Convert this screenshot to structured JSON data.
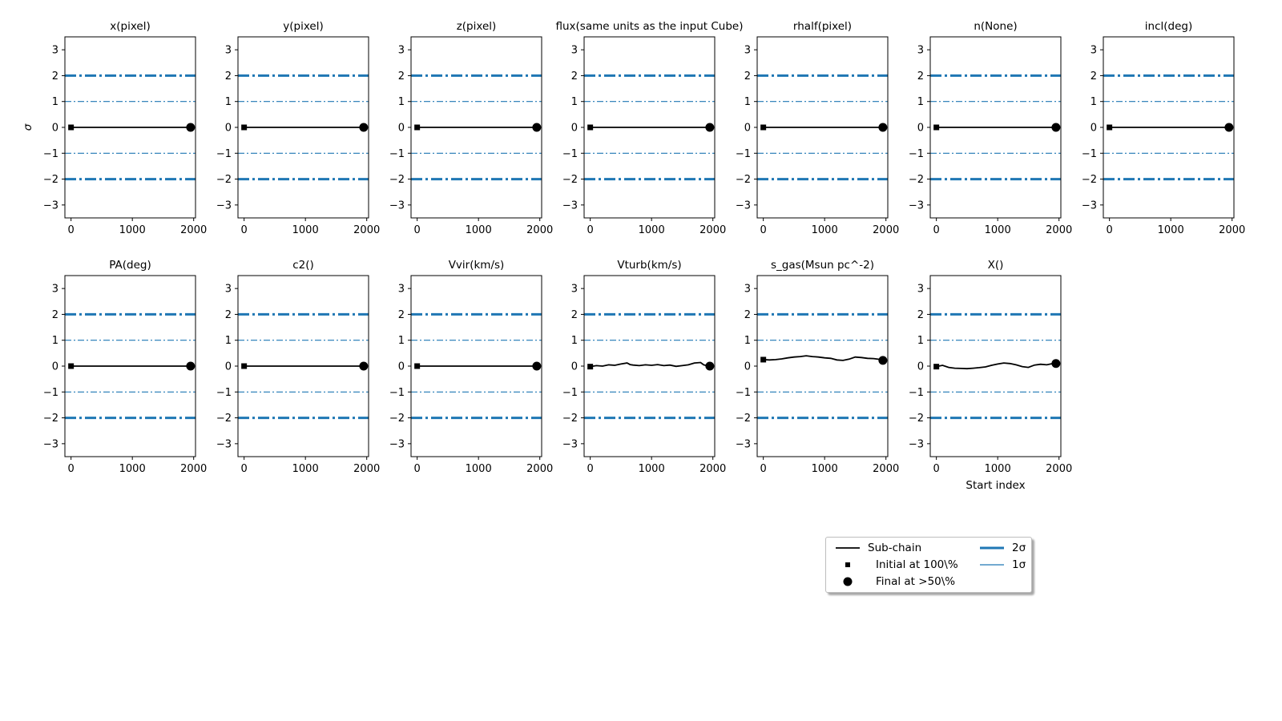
{
  "chart_data": {
    "type": "line",
    "ylabel": "σ",
    "xlabel": "Start index",
    "xlim": [
      -100,
      2030
    ],
    "ylim": [
      -3.5,
      3.5
    ],
    "xticks": [
      0,
      1000,
      2000
    ],
    "yticks": [
      -3,
      -2,
      -1,
      0,
      1,
      2,
      3
    ],
    "reference_lines": [
      {
        "y": 2,
        "label": "2σ",
        "style": "dashdot-thick"
      },
      {
        "y": 1,
        "label": "1σ",
        "style": "dashdot-thin"
      },
      {
        "y": -1,
        "label": "1σ",
        "style": "dashdot-thin"
      },
      {
        "y": -2,
        "label": "2σ",
        "style": "dashdot-thick"
      }
    ],
    "colors": {
      "subchain": "#000000",
      "sigma": "#1f77b4"
    },
    "panels": [
      {
        "title": "x(pixel)",
        "x": [
          0,
          1950
        ],
        "y": [
          0,
          0
        ]
      },
      {
        "title": "y(pixel)",
        "x": [
          0,
          1950
        ],
        "y": [
          0,
          0
        ]
      },
      {
        "title": "z(pixel)",
        "x": [
          0,
          1950
        ],
        "y": [
          0,
          0
        ]
      },
      {
        "title": "flux(same units as the input Cube)",
        "x": [
          0,
          1950
        ],
        "y": [
          0,
          0
        ]
      },
      {
        "title": "rhalf(pixel)",
        "x": [
          0,
          1950
        ],
        "y": [
          0,
          0
        ]
      },
      {
        "title": "n(None)",
        "x": [
          0,
          1950
        ],
        "y": [
          0,
          0
        ]
      },
      {
        "title": "incl(deg)",
        "x": [
          0,
          1950
        ],
        "y": [
          0,
          0
        ]
      },
      {
        "title": "PA(deg)",
        "x": [
          0,
          1950
        ],
        "y": [
          0,
          0
        ]
      },
      {
        "title": "c2()",
        "x": [
          0,
          1950
        ],
        "y": [
          0,
          0
        ]
      },
      {
        "title": "Vvir(km/s)",
        "x": [
          0,
          1950
        ],
        "y": [
          0,
          0
        ]
      },
      {
        "title": "Vturb(km/s)",
        "x": [
          0,
          100,
          200,
          300,
          400,
          500,
          600,
          650,
          700,
          800,
          900,
          1000,
          1100,
          1200,
          1300,
          1400,
          1500,
          1600,
          1700,
          1800,
          1850,
          1900,
          1950
        ],
        "y": [
          -0.02,
          0.02,
          0.0,
          0.05,
          0.03,
          0.08,
          0.12,
          0.06,
          0.04,
          0.02,
          0.05,
          0.03,
          0.06,
          0.02,
          0.04,
          -0.01,
          0.02,
          0.05,
          0.12,
          0.14,
          0.05,
          0.02,
          0.0
        ]
      },
      {
        "title": "s_gas(Msun pc^-2)",
        "x": [
          0,
          100,
          200,
          300,
          400,
          500,
          600,
          700,
          800,
          900,
          1000,
          1100,
          1200,
          1300,
          1400,
          1500,
          1600,
          1700,
          1800,
          1900,
          1950
        ],
        "y": [
          0.25,
          0.24,
          0.25,
          0.28,
          0.32,
          0.35,
          0.37,
          0.4,
          0.37,
          0.35,
          0.32,
          0.3,
          0.24,
          0.22,
          0.27,
          0.35,
          0.33,
          0.3,
          0.29,
          0.26,
          0.22
        ]
      },
      {
        "title": "X()",
        "x": [
          0,
          100,
          200,
          300,
          400,
          500,
          600,
          700,
          800,
          900,
          1000,
          1100,
          1200,
          1300,
          1400,
          1500,
          1600,
          1700,
          1800,
          1900,
          1950
        ],
        "y": [
          -0.02,
          0.03,
          -0.05,
          -0.08,
          -0.09,
          -0.1,
          -0.08,
          -0.06,
          -0.03,
          0.03,
          0.08,
          0.12,
          0.1,
          0.05,
          -0.02,
          -0.05,
          0.04,
          0.07,
          0.05,
          0.1,
          0.1
        ]
      }
    ]
  },
  "legend": {
    "items": [
      {
        "label": "Sub-chain",
        "symbol": "line"
      },
      {
        "label": "Initial at 100\\%",
        "symbol": "square"
      },
      {
        "label": "Final at $>50$\\%",
        "symbol": "circle",
        "display_label": "Final at >50\\%"
      },
      {
        "label": "2σ",
        "symbol": "thick-dashdot"
      },
      {
        "label": "1σ",
        "symbol": "thin-dashdot"
      }
    ]
  }
}
